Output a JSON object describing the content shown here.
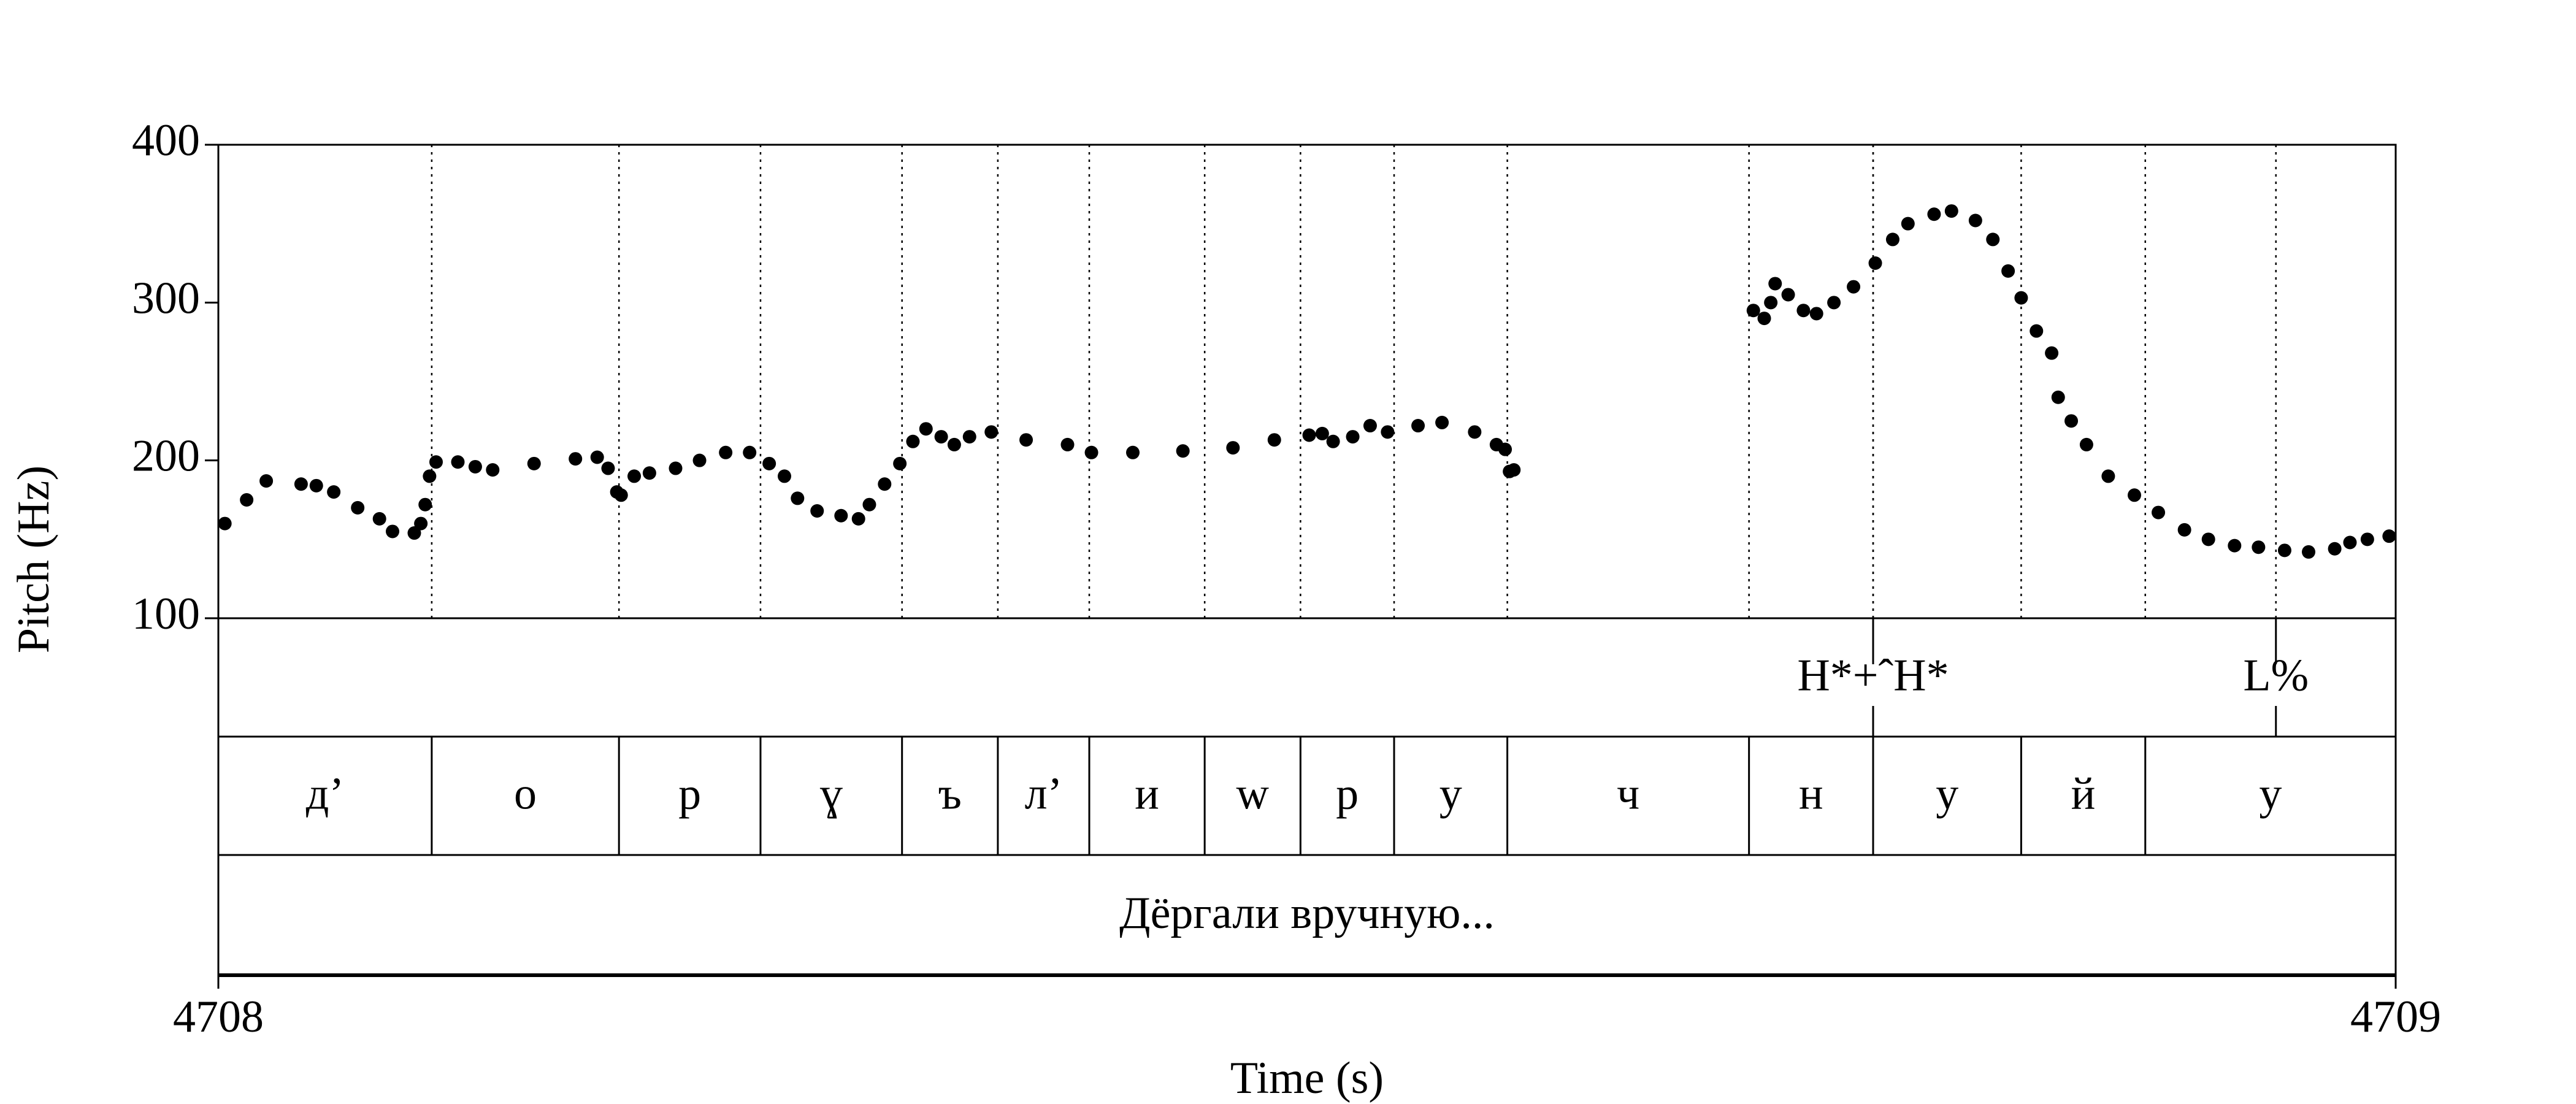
{
  "chart_data": {
    "type": "scatter",
    "xlabel": "Time (s)",
    "ylabel": "Pitch (Hz)",
    "xlim": [
      4708,
      4709
    ],
    "xticks": [
      4708,
      4709
    ],
    "ylim": [
      100,
      400
    ],
    "yticks": [
      100,
      200,
      300,
      400
    ],
    "color": "#000000",
    "x": [
      4708.003,
      4708.013,
      4708.022,
      4708.038,
      4708.045,
      4708.053,
      4708.064,
      4708.074,
      4708.08,
      4708.09,
      4708.093,
      4708.095,
      4708.097,
      4708.1,
      4708.11,
      4708.118,
      4708.126,
      4708.145,
      4708.164,
      4708.174,
      4708.179,
      4708.183,
      4708.185,
      4708.191,
      4708.198,
      4708.21,
      4708.221,
      4708.233,
      4708.244,
      4708.253,
      4708.26,
      4708.266,
      4708.275,
      4708.286,
      4708.294,
      4708.299,
      4708.306,
      4708.313,
      4708.319,
      4708.325,
      4708.332,
      4708.338,
      4708.345,
      4708.355,
      4708.371,
      4708.39,
      4708.401,
      4708.42,
      4708.443,
      4708.466,
      4708.485,
      4708.501,
      4708.507,
      4708.512,
      4708.521,
      4708.529,
      4708.537,
      4708.551,
      4708.562,
      4708.577,
      4708.587,
      4708.591,
      4708.593,
      4708.595,
      4708.705,
      4708.71,
      4708.713,
      4708.715,
      4708.721,
      4708.728,
      4708.734,
      4708.742,
      4708.751,
      4708.761,
      4708.769,
      4708.776,
      4708.788,
      4708.796,
      4708.807,
      4708.815,
      4708.822,
      4708.828,
      4708.835,
      4708.842,
      4708.845,
      4708.851,
      4708.858,
      4708.868,
      4708.88,
      4708.891,
      4708.903,
      4708.914,
      4708.926,
      4708.937,
      4708.949,
      4708.96,
      4708.972,
      4708.979,
      4708.987,
      4708.997
    ],
    "values": [
      160,
      175,
      187,
      185,
      184,
      180,
      170,
      163,
      155,
      154,
      160,
      172,
      190,
      199,
      199,
      196,
      194,
      198,
      201,
      202,
      195,
      180,
      178,
      190,
      192,
      195,
      200,
      205,
      205,
      198,
      190,
      176,
      168,
      165,
      163,
      172,
      185,
      198,
      212,
      220,
      215,
      210,
      215,
      218,
      213,
      210,
      205,
      205,
      206,
      208,
      213,
      216,
      217,
      212,
      215,
      222,
      218,
      222,
      224,
      218,
      210,
      207,
      193,
      194,
      295,
      290,
      300,
      312,
      305,
      295,
      293,
      300,
      310,
      325,
      340,
      350,
      356,
      358,
      352,
      340,
      320,
      303,
      282,
      268,
      240,
      225,
      210,
      190,
      178,
      167,
      156,
      150,
      146,
      145,
      143,
      142,
      144,
      148,
      150,
      152
    ],
    "tiers": [
      {
        "type": "point",
        "points": [
          {
            "time": 4708.76,
            "label": "H*+ˆH*"
          },
          {
            "time": 4708.945,
            "label": "L%"
          }
        ]
      },
      {
        "type": "interval",
        "boundaries": [
          4708.098,
          4708.184,
          4708.249,
          4708.314,
          4708.358,
          4708.4,
          4708.453,
          4708.497,
          4708.54,
          4708.592,
          4708.703,
          4708.76,
          4708.828,
          4708.885
        ],
        "labels": [
          "д’",
          "о",
          "р",
          "ɣ",
          "ъ",
          "л’",
          "и",
          "w",
          "р",
          "у",
          "ч",
          "н",
          "у",
          "й",
          "у"
        ]
      },
      {
        "type": "interval",
        "boundaries": [],
        "labels": [
          "Дёргали вручную..."
        ]
      }
    ]
  }
}
